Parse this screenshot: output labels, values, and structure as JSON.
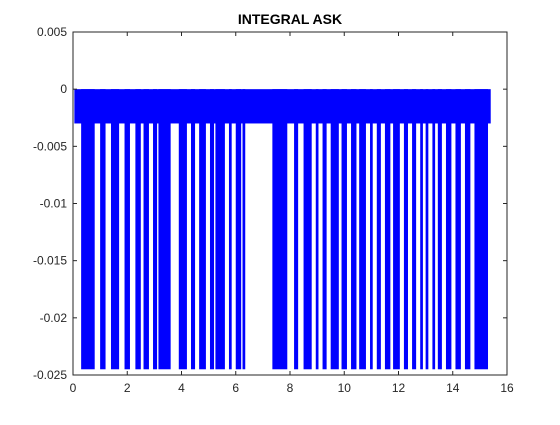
{
  "chart_data": {
    "type": "area",
    "title": "INTEGRAL ASK",
    "xlabel": "",
    "ylabel": "",
    "xlim": [
      0,
      16
    ],
    "ylim": [
      -0.025,
      0.005
    ],
    "grid": false,
    "x_ticks": [
      0,
      2,
      4,
      6,
      8,
      10,
      12,
      14,
      16
    ],
    "x_tick_labels": [
      "0",
      "2",
      "4",
      "6",
      "8",
      "10",
      "12",
      "14",
      "16"
    ],
    "y_ticks": [
      0.005,
      0,
      -0.005,
      -0.01,
      -0.015,
      -0.02,
      -0.025
    ],
    "y_tick_labels": [
      "0.005",
      "0",
      "-0.005",
      "-0.01",
      "-0.015",
      "-0.02",
      "-0.025"
    ],
    "series": [
      {
        "color": "#0000ff",
        "band_x_range": [
          0.05,
          15.4
        ],
        "band_y_range": [
          -0.003,
          0
        ],
        "deep_segments_x": [
          [
            0.3,
            0.8
          ],
          [
            1.0,
            1.2
          ],
          [
            1.4,
            1.7
          ],
          [
            1.9,
            2.1
          ],
          [
            2.3,
            2.5
          ],
          [
            2.6,
            2.8
          ],
          [
            2.95,
            3.1
          ],
          [
            3.15,
            3.6
          ],
          [
            3.9,
            4.2
          ],
          [
            4.35,
            4.5
          ],
          [
            4.65,
            4.9
          ],
          [
            5.05,
            5.2
          ],
          [
            5.25,
            5.6
          ],
          [
            5.75,
            5.85
          ],
          [
            6.0,
            6.2
          ],
          [
            6.25,
            6.35
          ],
          [
            7.35,
            7.9
          ],
          [
            8.15,
            8.3
          ],
          [
            8.5,
            8.8
          ],
          [
            8.95,
            9.05
          ],
          [
            9.2,
            9.35
          ],
          [
            9.5,
            9.8
          ],
          [
            9.9,
            10.1
          ],
          [
            10.25,
            10.45
          ],
          [
            10.55,
            10.8
          ],
          [
            10.95,
            11.05
          ],
          [
            11.2,
            11.35
          ],
          [
            11.5,
            11.7
          ],
          [
            11.8,
            12.05
          ],
          [
            12.2,
            12.35
          ],
          [
            12.5,
            12.65
          ],
          [
            12.8,
            12.9
          ],
          [
            13.0,
            13.1
          ],
          [
            13.25,
            13.35
          ],
          [
            13.45,
            13.6
          ],
          [
            13.75,
            13.95
          ],
          [
            14.1,
            14.3
          ],
          [
            14.45,
            14.65
          ],
          [
            14.8,
            15.3
          ]
        ],
        "deep_min": -0.0245
      }
    ]
  }
}
